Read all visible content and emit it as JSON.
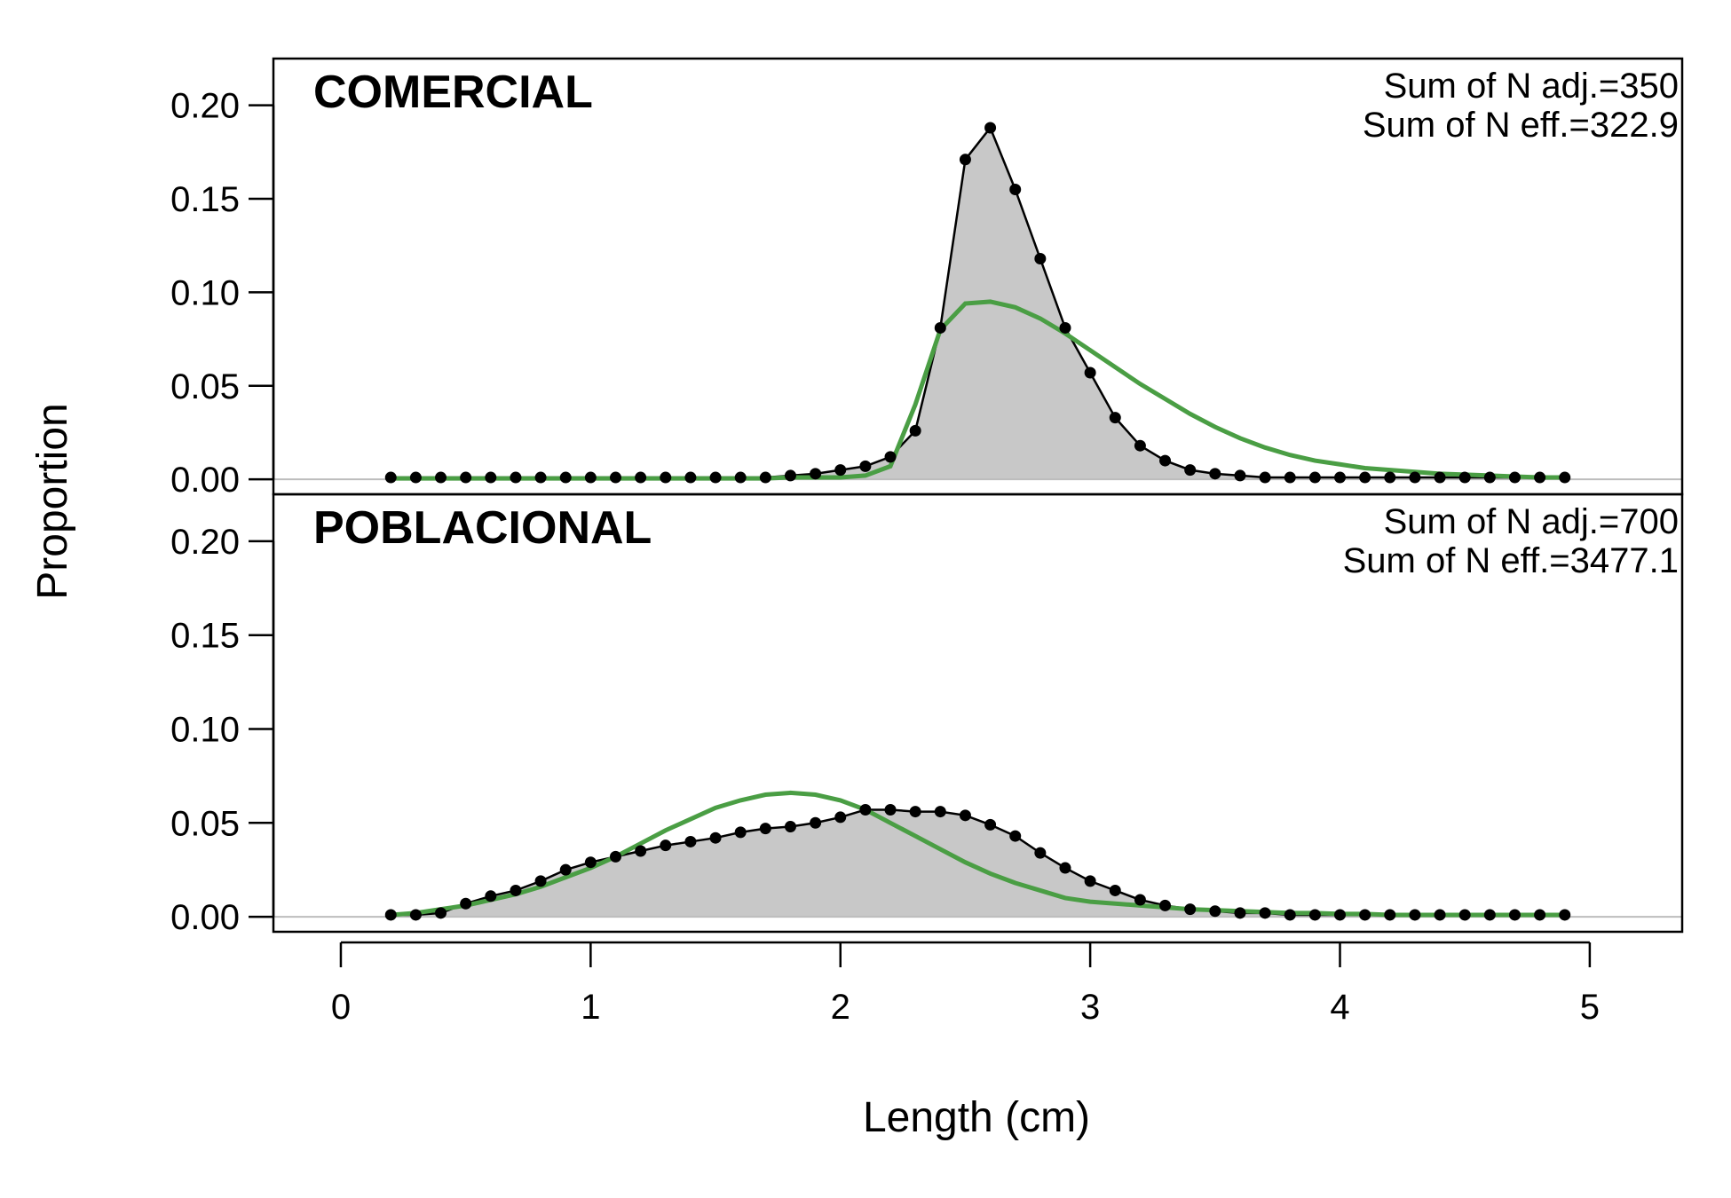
{
  "chart_data": {
    "type": "area",
    "xlabel": "Length (cm)",
    "ylabel": "Proportion",
    "xlim": [
      -0.27,
      5.37
    ],
    "x_ticks": [
      "0",
      "1",
      "2",
      "3",
      "4",
      "5"
    ],
    "y_ticks": [
      "0.00",
      "0.05",
      "0.10",
      "0.15",
      "0.20"
    ],
    "colors": {
      "observed": "#000000",
      "fill": "#c8c8c8",
      "expected": "#4a9e44",
      "zero_line": "#bdbdbd"
    },
    "x": [
      0.2,
      0.3,
      0.4,
      0.5,
      0.6,
      0.7,
      0.8,
      0.9,
      1.0,
      1.1,
      1.2,
      1.3,
      1.4,
      1.5,
      1.6,
      1.7,
      1.8,
      1.9,
      2.0,
      2.1,
      2.2,
      2.3,
      2.4,
      2.5,
      2.6,
      2.7,
      2.8,
      2.9,
      3.0,
      3.1,
      3.2,
      3.3,
      3.4,
      3.5,
      3.6,
      3.7,
      3.8,
      3.9,
      4.0,
      4.1,
      4.2,
      4.3,
      4.4,
      4.5,
      4.6,
      4.7,
      4.8,
      4.9
    ],
    "panels": [
      {
        "title": "COMERCIAL",
        "ylim": [
          -0.008,
          0.225
        ],
        "stats": [
          "Sum of N adj.=350",
          "Sum of N eff.=322.9"
        ],
        "observed": [
          0.001,
          0.001,
          0.001,
          0.001,
          0.001,
          0.001,
          0.001,
          0.001,
          0.001,
          0.001,
          0.001,
          0.001,
          0.001,
          0.001,
          0.001,
          0.001,
          0.002,
          0.003,
          0.005,
          0.007,
          0.012,
          0.026,
          0.081,
          0.171,
          0.188,
          0.155,
          0.118,
          0.081,
          0.057,
          0.033,
          0.018,
          0.01,
          0.005,
          0.003,
          0.002,
          0.001,
          0.001,
          0.001,
          0.001,
          0.001,
          0.001,
          0.001,
          0.001,
          0.001,
          0.001,
          0.001,
          0.001,
          0.001
        ],
        "expected": [
          0.0005,
          0.0005,
          0.0005,
          0.0005,
          0.0005,
          0.0005,
          0.0005,
          0.0005,
          0.0005,
          0.0005,
          0.0005,
          0.0005,
          0.0005,
          0.0005,
          0.0005,
          0.0005,
          0.001,
          0.001,
          0.001,
          0.002,
          0.007,
          0.04,
          0.08,
          0.094,
          0.095,
          0.092,
          0.086,
          0.078,
          0.069,
          0.06,
          0.051,
          0.043,
          0.035,
          0.028,
          0.022,
          0.017,
          0.013,
          0.01,
          0.008,
          0.006,
          0.005,
          0.004,
          0.003,
          0.0025,
          0.002,
          0.0015,
          0.001,
          0.001
        ]
      },
      {
        "title": "POBLACIONAL",
        "ylim": [
          -0.008,
          0.225
        ],
        "stats": [
          "Sum of N adj.=700",
          "Sum of N eff.=3477.1"
        ],
        "observed": [
          0.001,
          0.001,
          0.002,
          0.007,
          0.011,
          0.014,
          0.019,
          0.025,
          0.029,
          0.032,
          0.035,
          0.038,
          0.04,
          0.042,
          0.045,
          0.047,
          0.048,
          0.05,
          0.053,
          0.057,
          0.057,
          0.056,
          0.056,
          0.054,
          0.049,
          0.043,
          0.034,
          0.026,
          0.019,
          0.014,
          0.009,
          0.006,
          0.004,
          0.003,
          0.002,
          0.002,
          0.001,
          0.001,
          0.001,
          0.001,
          0.001,
          0.001,
          0.001,
          0.001,
          0.001,
          0.001,
          0.001,
          0.001
        ],
        "expected": [
          0.001,
          0.002,
          0.004,
          0.006,
          0.009,
          0.012,
          0.016,
          0.021,
          0.026,
          0.032,
          0.039,
          0.046,
          0.052,
          0.058,
          0.062,
          0.065,
          0.066,
          0.065,
          0.062,
          0.057,
          0.05,
          0.043,
          0.036,
          0.029,
          0.023,
          0.018,
          0.014,
          0.01,
          0.008,
          0.007,
          0.006,
          0.005,
          0.004,
          0.0035,
          0.003,
          0.0025,
          0.002,
          0.002,
          0.0015,
          0.0015,
          0.001,
          0.001,
          0.001,
          0.001,
          0.001,
          0.001,
          0.001,
          0.001
        ]
      }
    ]
  }
}
